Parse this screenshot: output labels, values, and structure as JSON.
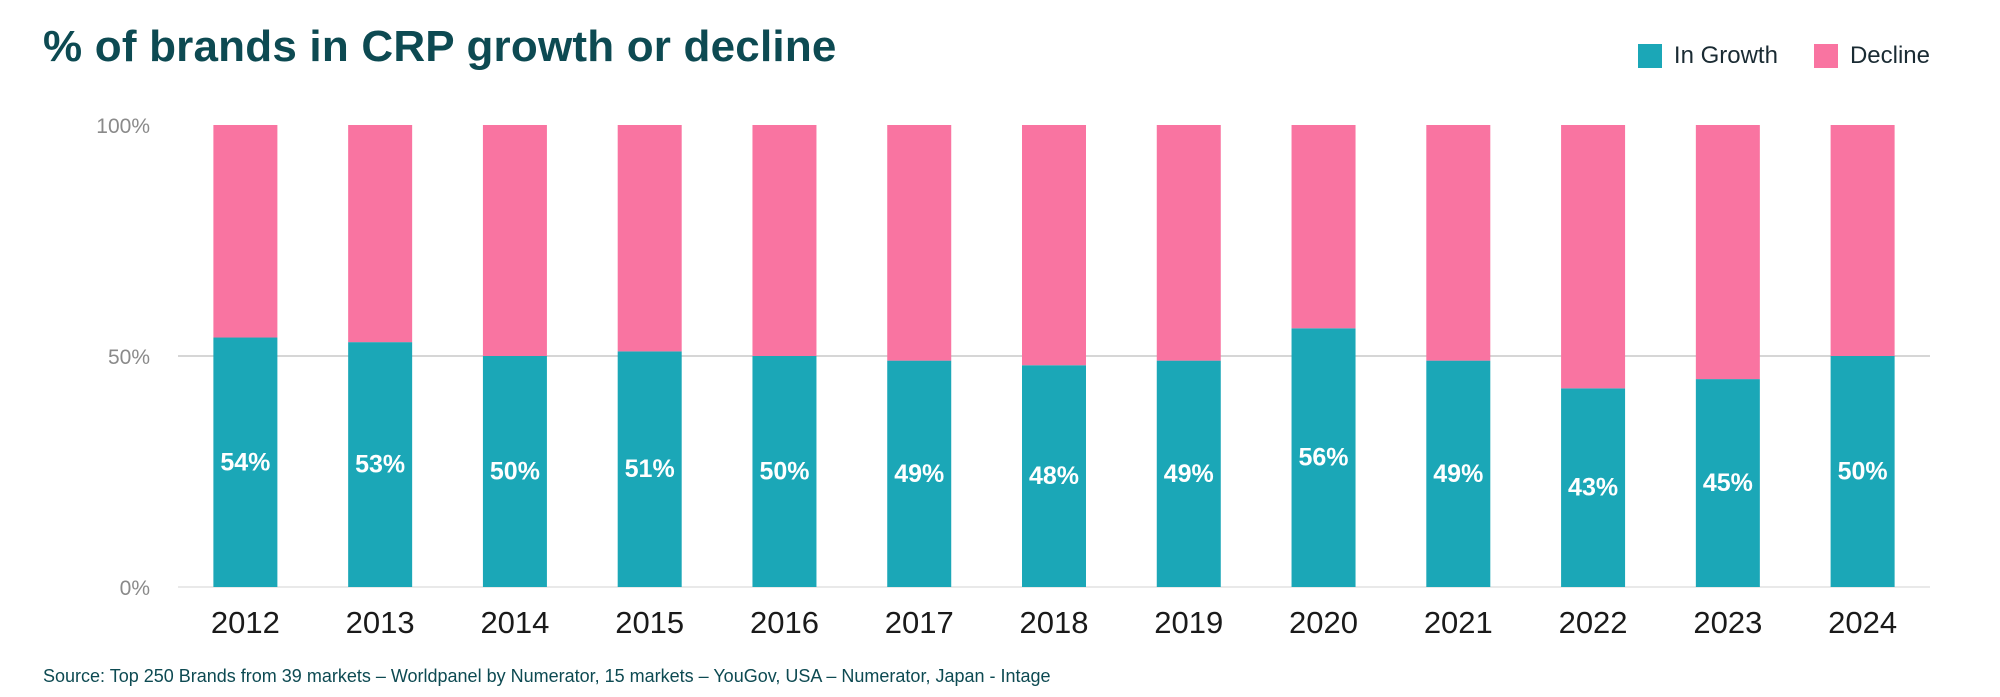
{
  "title": "% of brands in CRP growth or decline",
  "source": "Source: Top 250 Brands from 39 markets – Worldpanel by Numerator, 15 markets – YouGov, USA – Numerator, Japan - Intage",
  "legend": {
    "growth_label": "In Growth",
    "decline_label": "Decline"
  },
  "colors": {
    "growth": "#1ba7b7",
    "decline": "#f974a1",
    "title": "#0d4a52",
    "axis_text": "#8a8a8a",
    "gridline": "#c8c8c8"
  },
  "chart_data": {
    "type": "bar",
    "stacked": true,
    "categories": [
      "2012",
      "2013",
      "2014",
      "2015",
      "2016",
      "2017",
      "2018",
      "2019",
      "2020",
      "2021",
      "2022",
      "2023",
      "2024"
    ],
    "series": [
      {
        "name": "In Growth",
        "values": [
          54,
          53,
          50,
          51,
          50,
          49,
          48,
          49,
          56,
          49,
          43,
          45,
          50
        ],
        "labels": [
          "54%",
          "53%",
          "50%",
          "51%",
          "50%",
          "49%",
          "48%",
          "49%",
          "56%",
          "49%",
          "43%",
          "45%",
          "50%"
        ]
      },
      {
        "name": "Decline",
        "values": [
          46,
          47,
          50,
          49,
          50,
          51,
          52,
          51,
          44,
          51,
          57,
          55,
          50
        ]
      }
    ],
    "title": "% of brands in CRP growth or decline",
    "xlabel": "",
    "ylabel": "",
    "ylim": [
      0,
      100
    ],
    "yticks": [
      0,
      50,
      100
    ],
    "ytick_labels": [
      "0%",
      "50%",
      "100%"
    ],
    "legend_position": "top-right",
    "gridlines": "50% only"
  }
}
